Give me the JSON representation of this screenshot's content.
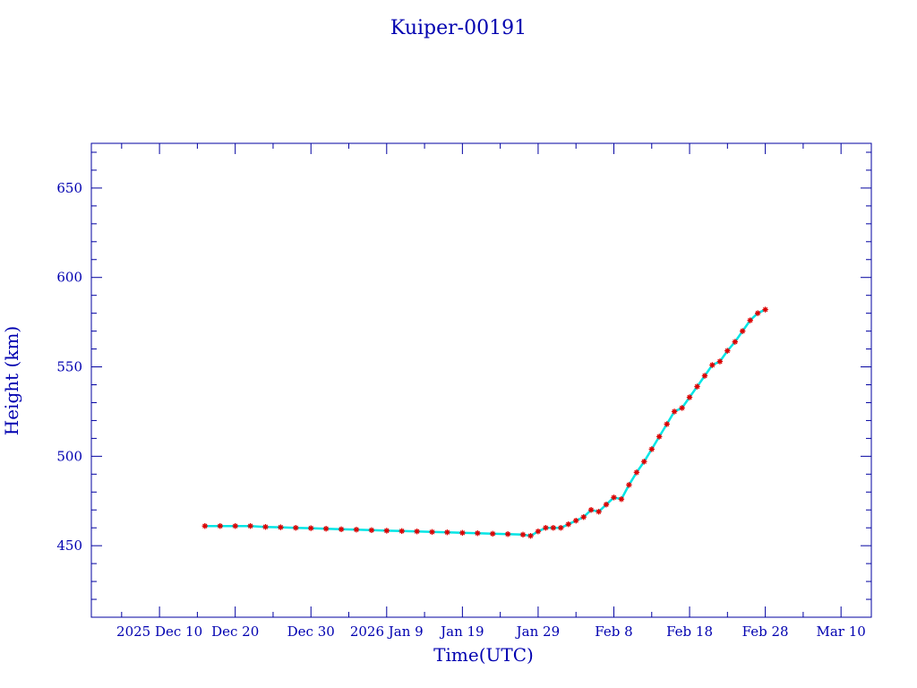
{
  "chart_data": {
    "type": "scatter",
    "title": "Kuiper-00191",
    "xlabel": "Time(UTC)",
    "ylabel": "Height (km)",
    "ylim": [
      410,
      675
    ],
    "xlim": [
      "2025-12-01",
      "2026-03-14"
    ],
    "grid": false,
    "y_ticks": [
      450,
      500,
      550,
      600,
      650
    ],
    "x_ticks": [
      {
        "date": "2025-12-10",
        "label": "2025 Dec 10"
      },
      {
        "date": "2025-12-20",
        "label": "Dec 20"
      },
      {
        "date": "2025-12-30",
        "label": "Dec 30"
      },
      {
        "date": "2026-01-09",
        "label": "2026 Jan  9"
      },
      {
        "date": "2026-01-19",
        "label": "Jan 19"
      },
      {
        "date": "2026-01-29",
        "label": "Jan 29"
      },
      {
        "date": "2026-02-08",
        "label": "Feb  8"
      },
      {
        "date": "2026-02-18",
        "label": "Feb 18"
      },
      {
        "date": "2026-02-28",
        "label": "Feb 28"
      },
      {
        "date": "2026-03-10",
        "label": "Mar 10"
      }
    ],
    "series": [
      {
        "marker": "asterisk",
        "color": "#dd0000",
        "line_color": "#00e5e5",
        "points": [
          [
            "2025-12-16",
            461
          ],
          [
            "2025-12-18",
            461
          ],
          [
            "2025-12-20",
            461
          ],
          [
            "2025-12-22",
            461
          ],
          [
            "2025-12-24",
            460.5
          ],
          [
            "2025-12-26",
            460.3
          ],
          [
            "2025-12-28",
            460
          ],
          [
            "2025-12-30",
            459.8
          ],
          [
            "2026-01-01",
            459.5
          ],
          [
            "2026-01-03",
            459.2
          ],
          [
            "2026-01-05",
            459
          ],
          [
            "2026-01-07",
            458.7
          ],
          [
            "2026-01-09",
            458.4
          ],
          [
            "2026-01-11",
            458.2
          ],
          [
            "2026-01-13",
            458
          ],
          [
            "2026-01-15",
            457.7
          ],
          [
            "2026-01-17",
            457.5
          ],
          [
            "2026-01-19",
            457.2
          ],
          [
            "2026-01-21",
            457
          ],
          [
            "2026-01-23",
            456.7
          ],
          [
            "2026-01-25",
            456.5
          ],
          [
            "2026-01-27",
            456.2
          ],
          [
            "2026-01-28",
            455.5
          ],
          [
            "2026-01-29",
            458
          ],
          [
            "2026-01-30",
            460
          ],
          [
            "2026-01-31",
            460
          ],
          [
            "2026-02-01",
            460
          ],
          [
            "2026-02-02",
            462
          ],
          [
            "2026-02-03",
            464
          ],
          [
            "2026-02-04",
            466
          ],
          [
            "2026-02-05",
            470
          ],
          [
            "2026-02-06",
            469
          ],
          [
            "2026-02-07",
            473
          ],
          [
            "2026-02-08",
            477
          ],
          [
            "2026-02-09",
            476
          ],
          [
            "2026-02-10",
            484
          ],
          [
            "2026-02-11",
            491
          ],
          [
            "2026-02-12",
            497
          ],
          [
            "2026-02-13",
            504
          ],
          [
            "2026-02-14",
            511
          ],
          [
            "2026-02-15",
            518
          ],
          [
            "2026-02-16",
            525
          ],
          [
            "2026-02-17",
            527
          ],
          [
            "2026-02-18",
            533
          ],
          [
            "2026-02-19",
            539
          ],
          [
            "2026-02-20",
            545
          ],
          [
            "2026-02-21",
            551
          ],
          [
            "2026-02-22",
            553
          ],
          [
            "2026-02-23",
            559
          ],
          [
            "2026-02-24",
            564
          ],
          [
            "2026-02-25",
            570
          ],
          [
            "2026-02-26",
            576
          ],
          [
            "2026-02-27",
            580
          ],
          [
            "2026-02-28",
            582
          ]
        ]
      }
    ]
  },
  "colors": {
    "axis": "#0000a0",
    "text": "#0000b0",
    "marker": "#dd0000",
    "line": "#00e5e5"
  }
}
